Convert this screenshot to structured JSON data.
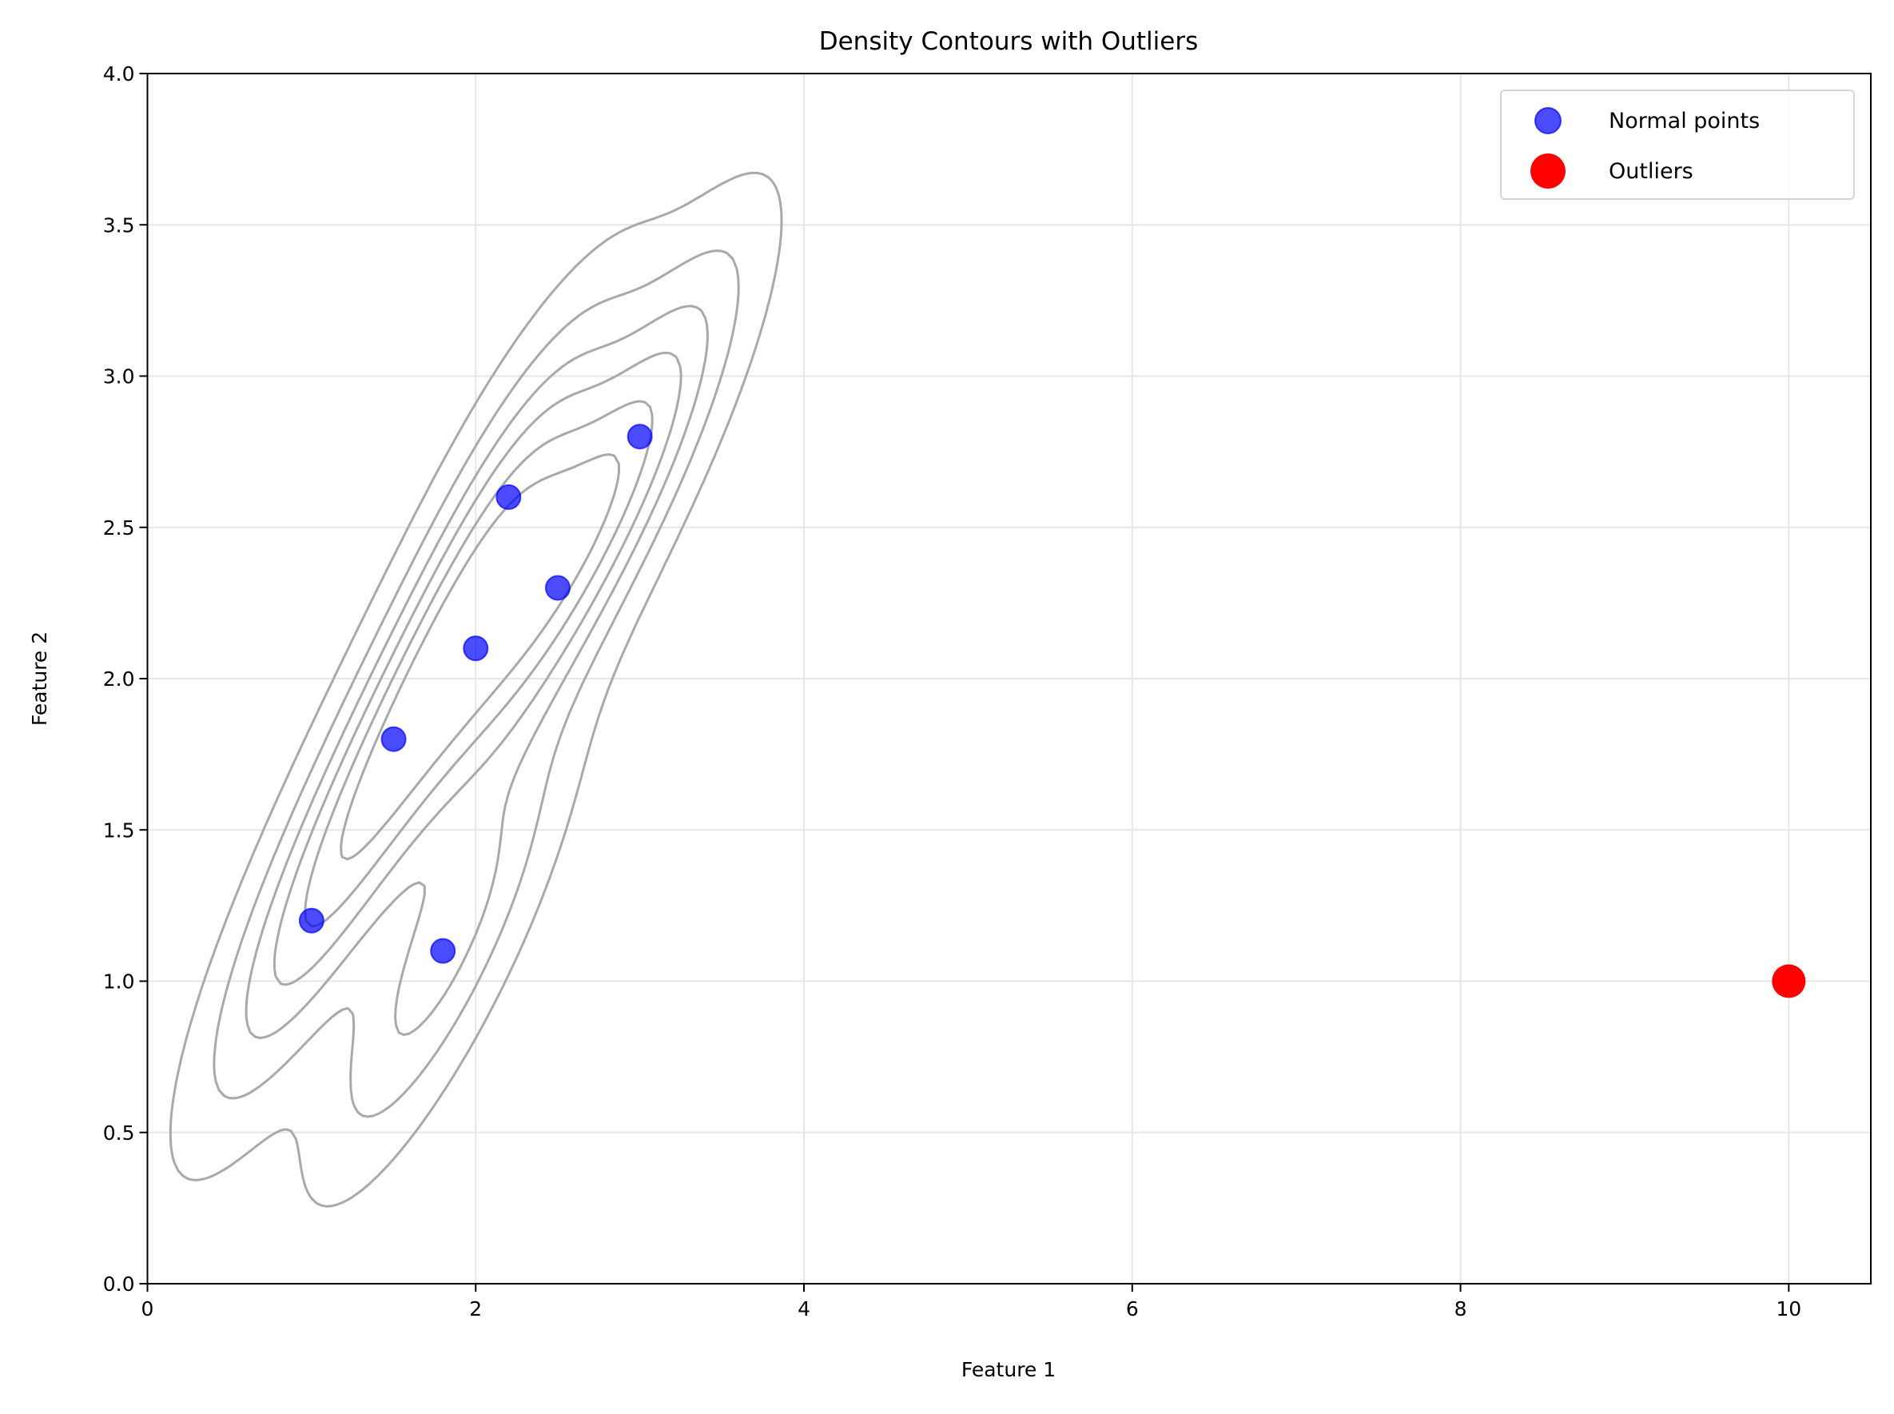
{
  "chart_data": {
    "type": "scatter",
    "title": "Density Contours with Outliers",
    "xlabel": "Feature 1",
    "ylabel": "Feature 2",
    "xlim": [
      0,
      10.5
    ],
    "ylim": [
      0,
      4.0
    ],
    "xticks": [
      "0",
      "2",
      "4",
      "6",
      "8",
      "10"
    ],
    "yticks": [
      "0.0",
      "0.5",
      "1.0",
      "1.5",
      "2.0",
      "2.5",
      "3.0",
      "3.5",
      "4.0"
    ],
    "grid": true,
    "legend_position": "top-right",
    "contours": {
      "type": "kde density contours of normal points",
      "color": "#a9a9a9"
    },
    "series": [
      {
        "name": "Normal points",
        "color": "#0000ff",
        "alpha": 0.7,
        "x": [
          1.0,
          1.5,
          2.0,
          2.2,
          2.5,
          3.0,
          1.8
        ],
        "y": [
          1.2,
          1.8,
          2.1,
          2.6,
          2.3,
          2.8,
          1.1
        ]
      },
      {
        "name": "Outliers",
        "color": "#ff0000",
        "x": [
          10.0
        ],
        "y": [
          1.0
        ]
      }
    ]
  }
}
